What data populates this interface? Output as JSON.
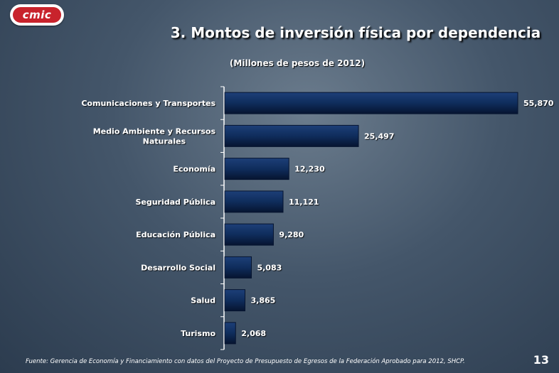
{
  "logo": {
    "text": "cmic"
  },
  "title": "3. Montos de inversión física por dependencia",
  "subtitle": "(Millones de pesos de 2012)",
  "footnote": "Fuente: Gerencia de Economía y Financiamiento con datos del Proyecto de Presupuesto de Egresos de la Federación Aprobado para 2012, SHCP.",
  "page_number": "13",
  "colors": {
    "bar": "#0f2d5c",
    "bar_edge": "#061430",
    "axis": "#ffffff",
    "text": "#ffffff",
    "logo": "#c8232c"
  },
  "chart_data": {
    "type": "bar",
    "orientation": "horizontal",
    "categories": [
      "Comunicaciones y Transportes",
      "Medio Ambiente y Recursos Naturales",
      "Economía",
      "Seguridad Pública",
      "Educación Pública",
      "Desarrollo Social",
      "Salud",
      "Turismo"
    ],
    "category_lines": [
      [
        "Comunicaciones y Transportes"
      ],
      [
        "Medio Ambiente y Recursos",
        "Naturales"
      ],
      [
        "Economía"
      ],
      [
        "Seguridad Pública"
      ],
      [
        "Educación Pública"
      ],
      [
        "Desarrollo Social"
      ],
      [
        "Salud"
      ],
      [
        "Turismo"
      ]
    ],
    "values": [
      55870,
      25497,
      12230,
      11121,
      9280,
      5083,
      3865,
      2068
    ],
    "value_labels": [
      "55,870",
      "25,497",
      "12,230",
      "11,121",
      "9,280",
      "5,083",
      "3,865",
      "2,068"
    ],
    "xlim": [
      0,
      55870
    ],
    "grid": false,
    "legend": "none"
  }
}
